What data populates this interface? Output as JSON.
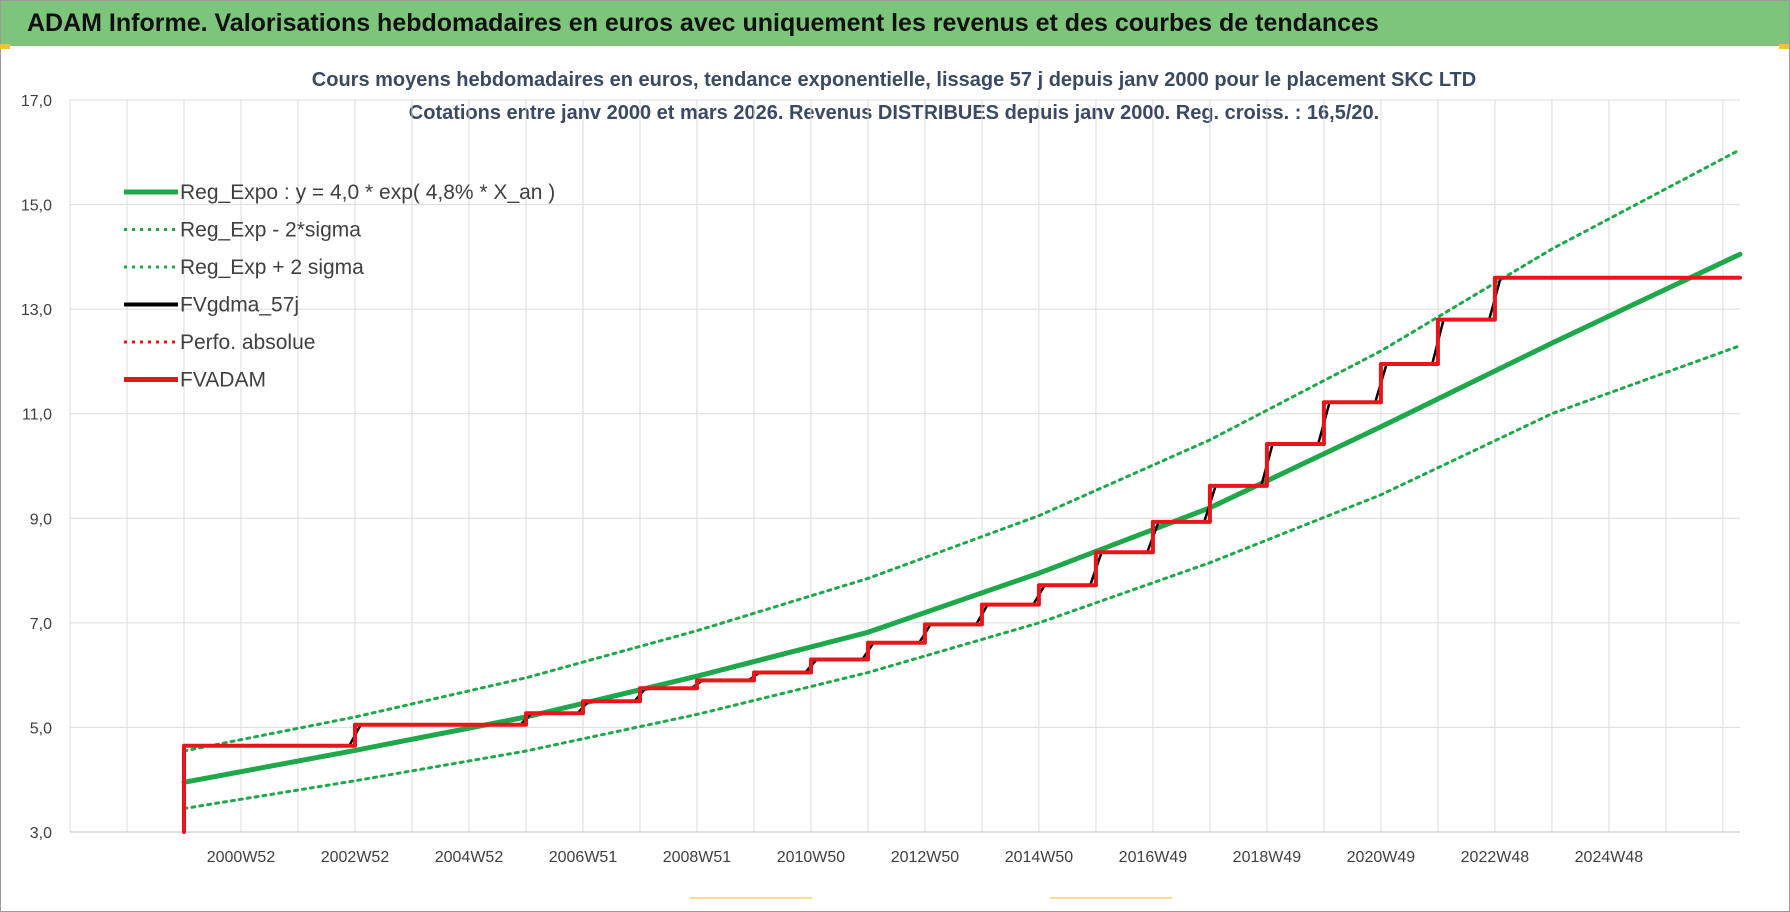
{
  "header": {
    "title": "ADAM Informe. Valorisations hebdomadaires en euros avec uniquement les revenus et des courbes de tendances"
  },
  "chart_data": {
    "type": "line",
    "title_line1": "Cours moyens hebdomadaires en euros, tendance exponentielle, lissage 57 j depuis janv 2000  pour le placement SKC LTD",
    "title_line2": "Cotations entre janv 2000 et mars 2026. Revenus DISTRIBUES depuis janv 2000. Reg. croiss. : 16,5/20.",
    "ylim": [
      3.0,
      17.0
    ],
    "y_ticks": [
      "3,0",
      "5,0",
      "7,0",
      "9,0",
      "11,0",
      "13,0",
      "15,0",
      "17,0"
    ],
    "xlim": [
      1997.0,
      2026.3
    ],
    "x_ticks": [
      {
        "x": 2000.0,
        "label": "2000W52"
      },
      {
        "x": 2002.0,
        "label": "2002W52"
      },
      {
        "x": 2004.0,
        "label": "2004W52"
      },
      {
        "x": 2006.0,
        "label": "2006W51"
      },
      {
        "x": 2008.0,
        "label": "2008W51"
      },
      {
        "x": 2010.0,
        "label": "2010W50"
      },
      {
        "x": 2012.0,
        "label": "2012W50"
      },
      {
        "x": 2014.0,
        "label": "2014W50"
      },
      {
        "x": 2016.0,
        "label": "2016W49"
      },
      {
        "x": 2018.0,
        "label": "2018W49"
      },
      {
        "x": 2020.0,
        "label": "2020W49"
      },
      {
        "x": 2022.0,
        "label": "2022W48"
      },
      {
        "x": 2024.0,
        "label": "2024W48"
      }
    ],
    "grid": true,
    "legend_position": "top-left",
    "series": [
      {
        "name": "Reg_Expo : y = 4,0 * exp( 4,8% *  X_an )",
        "color": "#1ea84b",
        "style": "solid-thick",
        "x": [
          1999.0,
          2002.0,
          2005.0,
          2008.0,
          2011.0,
          2014.0,
          2017.0,
          2020.0,
          2023.0,
          2026.3
        ],
        "y": [
          3.95,
          4.56,
          5.2,
          5.98,
          6.82,
          7.95,
          9.2,
          10.75,
          12.35,
          14.05
        ]
      },
      {
        "name": "Reg_Exp - 2*sigma",
        "color": "#1ea84b",
        "style": "dotted",
        "x": [
          1999.0,
          2002.0,
          2005.0,
          2008.0,
          2011.0,
          2014.0,
          2017.0,
          2020.0,
          2023.0,
          2026.3
        ],
        "y": [
          3.45,
          3.98,
          4.55,
          5.25,
          6.05,
          7.0,
          8.15,
          9.45,
          11.0,
          12.3
        ]
      },
      {
        "name": "Reg_Exp + 2 sigma",
        "color": "#1ea84b",
        "style": "dotted",
        "x": [
          1999.0,
          2002.0,
          2005.0,
          2008.0,
          2011.0,
          2014.0,
          2017.0,
          2020.0,
          2023.0,
          2026.3
        ],
        "y": [
          4.55,
          5.2,
          5.95,
          6.85,
          7.85,
          9.05,
          10.5,
          12.2,
          14.15,
          16.05
        ]
      },
      {
        "name": "FVgdma_57j",
        "color": "#000000",
        "style": "solid",
        "x": [
          1999.0,
          2001.9,
          2002.1,
          2004.9,
          2005.1,
          2005.9,
          2006.1,
          2006.9,
          2007.1,
          2007.9,
          2008.1,
          2008.9,
          2009.1,
          2009.9,
          2010.1,
          2010.9,
          2011.1,
          2011.9,
          2012.1,
          2012.9,
          2013.1,
          2013.9,
          2014.1,
          2014.9,
          2015.1,
          2015.9,
          2016.1,
          2016.9,
          2017.1,
          2017.9,
          2018.1,
          2018.9,
          2019.1,
          2019.9,
          2020.1,
          2020.9,
          2021.1,
          2021.9,
          2022.1,
          2026.3
        ],
        "y": [
          4.65,
          4.65,
          5.05,
          5.05,
          5.27,
          5.27,
          5.5,
          5.5,
          5.75,
          5.75,
          5.9,
          5.9,
          6.05,
          6.05,
          6.3,
          6.3,
          6.62,
          6.62,
          6.97,
          6.97,
          7.35,
          7.35,
          7.72,
          7.72,
          8.35,
          8.35,
          8.93,
          8.93,
          9.62,
          9.62,
          10.42,
          10.42,
          11.22,
          11.22,
          11.95,
          11.95,
          12.8,
          12.8,
          13.6,
          13.6
        ]
      },
      {
        "name": "Perfo. absolue",
        "color": "#e8151b",
        "style": "dotted",
        "x": [],
        "y": []
      },
      {
        "name": "FVADAM",
        "color": "#e8151b",
        "style": "solid-thick",
        "x": [
          1999.0,
          1999.0,
          2002.0,
          2002.0,
          2005.0,
          2005.0,
          2006.0,
          2006.0,
          2007.0,
          2007.0,
          2008.0,
          2008.0,
          2009.0,
          2009.0,
          2010.0,
          2010.0,
          2011.0,
          2011.0,
          2012.0,
          2012.0,
          2013.0,
          2013.0,
          2014.0,
          2014.0,
          2015.0,
          2015.0,
          2016.0,
          2016.0,
          2017.0,
          2017.0,
          2018.0,
          2018.0,
          2019.0,
          2019.0,
          2020.0,
          2020.0,
          2021.0,
          2021.0,
          2022.0,
          2022.0,
          2026.3
        ],
        "y": [
          3.0,
          4.65,
          4.65,
          5.05,
          5.05,
          5.27,
          5.27,
          5.5,
          5.5,
          5.75,
          5.75,
          5.9,
          5.9,
          6.05,
          6.05,
          6.3,
          6.3,
          6.62,
          6.62,
          6.97,
          6.97,
          7.35,
          7.35,
          7.72,
          7.72,
          8.35,
          8.35,
          8.93,
          8.93,
          9.62,
          9.62,
          10.42,
          10.42,
          11.22,
          11.22,
          11.95,
          11.95,
          12.8,
          12.8,
          13.6,
          13.6
        ]
      }
    ]
  }
}
